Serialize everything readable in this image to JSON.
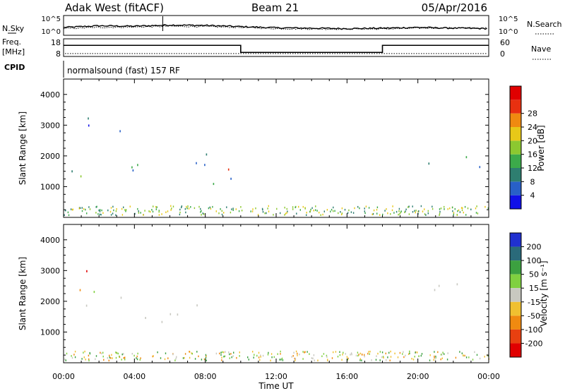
{
  "header": {
    "station": "Adak West (fitACF)",
    "beam": "Beam 21",
    "date": "05/Apr/2016"
  },
  "strip_labels": {
    "nsky": "N.Sky",
    "nsearch": "N.Search",
    "freq": "Freq.",
    "freq_unit": "[MHz]",
    "nave": "Nave",
    "cpid": "CPID",
    "cpid_text": "normalsound (fast) 157 RF"
  },
  "chart_data": [
    {
      "type": "line",
      "panel": "noise",
      "series_labels": [
        "N.Sky",
        "N.Search"
      ],
      "y_ticks_left": [
        "10^5",
        "10^0"
      ],
      "y_ticks_right": [
        "10^5",
        "10^0"
      ],
      "x": [
        0,
        2,
        4,
        6,
        8,
        10,
        12,
        14,
        16,
        18,
        20,
        22,
        24
      ],
      "nsky": [
        2.0,
        2.4,
        2.3,
        2.6,
        2.5,
        2.2,
        1.9,
        1.8,
        1.7,
        1.8,
        2.0,
        1.8,
        1.7
      ],
      "nsearch": [
        1.7,
        2.0,
        2.1,
        2.3,
        2.2,
        2.0,
        1.7,
        1.6,
        1.6,
        1.6,
        1.8,
        1.9,
        1.8
      ],
      "ylim": [
        0,
        5
      ]
    },
    {
      "type": "line",
      "panel": "frequency",
      "y_ticks_left": [
        "18",
        "8"
      ],
      "y_ticks_right": [
        "60",
        "0"
      ],
      "segments": [
        {
          "start": 0,
          "end": 10,
          "freq": 14.3
        },
        {
          "start": 10,
          "end": 18,
          "freq": 10.3
        },
        {
          "start": 18,
          "end": 24,
          "freq": 14.3
        }
      ],
      "nave": 10,
      "freq_lim": [
        8,
        18
      ],
      "nave_lim": [
        0,
        60
      ]
    },
    {
      "type": "heatmap",
      "panel": "power",
      "ylabel": "Slant Range [km]",
      "ylim": [
        0,
        4500
      ],
      "y_ticks": [
        1000,
        2000,
        3000,
        4000
      ],
      "colorbar_label": "Power [dB]",
      "colorbar_ticks": [
        "4",
        "8",
        "12",
        "16",
        "20",
        "24",
        "28"
      ],
      "colorbar_colors": [
        "#1010e8",
        "#2860c8",
        "#2e7e70",
        "#3caa4a",
        "#8cc830",
        "#e8c818",
        "#f08a10",
        "#e83010",
        "#e00000"
      ],
      "regions": [
        {
          "t0": 0.2,
          "t1": 10.0,
          "r0": 1100,
          "r1": 2300,
          "level": "mid"
        },
        {
          "t0": 0.3,
          "t1": 9.5,
          "r0": 1300,
          "r1": 1800,
          "level": "high"
        },
        {
          "t0": 0.2,
          "t1": 4.0,
          "r0": 2300,
          "r1": 3500,
          "level": "low"
        },
        {
          "t0": 15.5,
          "t1": 17.0,
          "r0": 700,
          "r1": 900,
          "level": "mid"
        },
        {
          "t0": 17.8,
          "t1": 18.5,
          "r0": 1500,
          "r1": 2500,
          "level": "low"
        },
        {
          "t0": 20.5,
          "t1": 24.0,
          "r0": 1400,
          "r1": 2600,
          "level": "mid"
        },
        {
          "t0": 23.5,
          "t1": 24.0,
          "r0": 800,
          "r1": 1200,
          "level": "low"
        }
      ]
    },
    {
      "type": "heatmap",
      "panel": "velocity",
      "ylabel": "Slant Range [km]",
      "xlabel": "Time UT",
      "ylim": [
        0,
        4500
      ],
      "y_ticks": [
        1000,
        2000,
        3000,
        4000
      ],
      "x_ticks": [
        "00:00",
        "04:00",
        "08:00",
        "12:00",
        "16:00",
        "20:00",
        "00:00"
      ],
      "colorbar_label": "Velocity [m s⁻¹]",
      "colorbar_ticks": [
        "200",
        "100",
        "50",
        "15",
        "-15",
        "-50",
        "-100",
        "-200"
      ],
      "colorbar_colors": [
        "#2030d0",
        "#2a6a7a",
        "#3ca040",
        "#80d040",
        "#c8c8c0",
        "#f0c030",
        "#f08a10",
        "#e84010",
        "#e00000"
      ],
      "regions": [
        {
          "t0": 0.2,
          "t1": 10.0,
          "r0": 1200,
          "r1": 2200,
          "level": "ground"
        },
        {
          "t0": 0.2,
          "t1": 4.0,
          "r0": 2200,
          "r1": 3500,
          "level": "mixed"
        },
        {
          "t0": 15.5,
          "t1": 17.0,
          "r0": 700,
          "r1": 900,
          "level": "ground"
        },
        {
          "t0": 20.5,
          "t1": 24.0,
          "r0": 1400,
          "r1": 2600,
          "level": "ground"
        },
        {
          "t0": 23.5,
          "t1": 24.0,
          "r0": 800,
          "r1": 1200,
          "level": "mixed"
        }
      ]
    }
  ]
}
